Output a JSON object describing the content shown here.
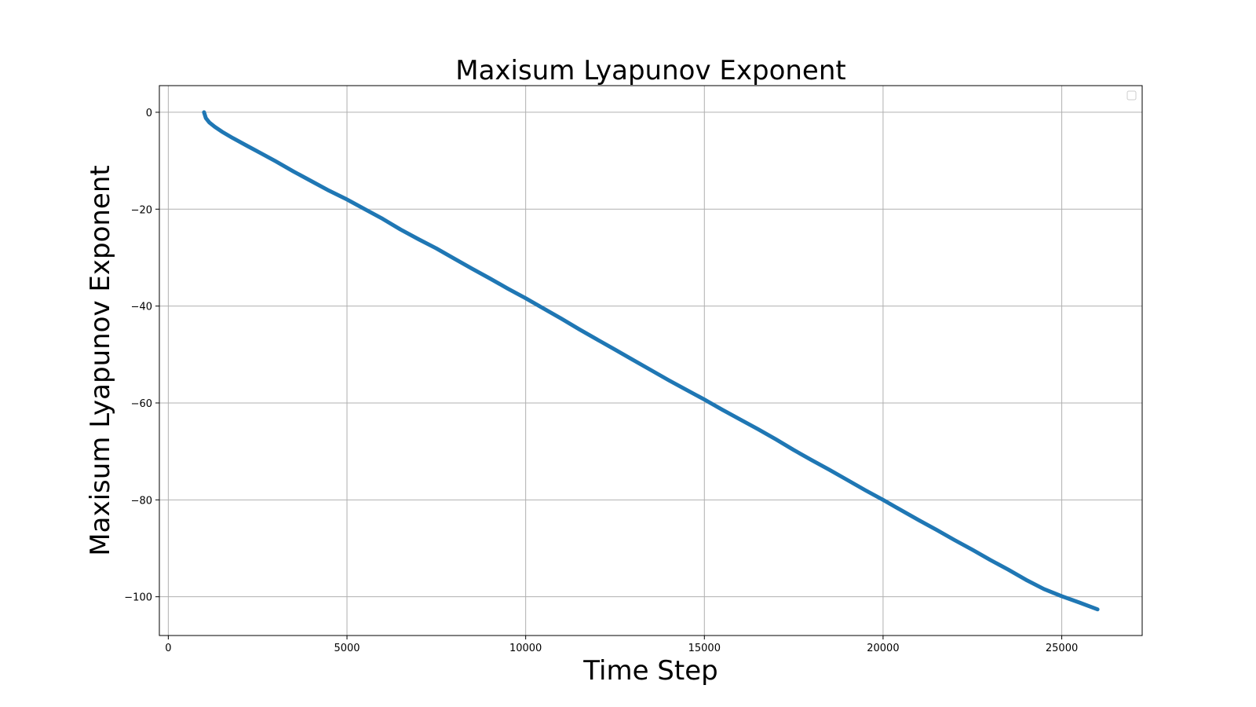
{
  "chart_data": {
    "type": "line",
    "title": "Maxisum Lyapunov Exponent",
    "xlabel": "Time Step",
    "ylabel": "Maxisum Lyapunov Exponent",
    "xlim": [
      -250,
      27250
    ],
    "ylim": [
      -108,
      5.5
    ],
    "x_ticks": [
      0,
      5000,
      10000,
      15000,
      20000,
      25000
    ],
    "y_ticks": [
      0,
      -20,
      -40,
      -60,
      -80,
      -100
    ],
    "x_tick_labels": [
      "0",
      "5000",
      "10000",
      "15000",
      "20000",
      "25000"
    ],
    "y_tick_labels": [
      "0",
      "−20",
      "−40",
      "−60",
      "−80",
      "−100"
    ],
    "grid": true,
    "legend": "top-right",
    "series": [
      {
        "color": "#1f77b4",
        "x": [
          1000,
          1050,
          1150,
          1300,
          1500,
          1800,
          2200,
          2600,
          3000,
          3500,
          4000,
          4500,
          5000,
          5500,
          6000,
          6500,
          7000,
          7500,
          8000,
          8500,
          9000,
          9500,
          10000,
          10500,
          11000,
          11500,
          12000,
          12500,
          13000,
          13500,
          14000,
          14500,
          15000,
          15500,
          16000,
          16500,
          17000,
          17500,
          18000,
          18500,
          19000,
          19500,
          20000,
          20500,
          21000,
          21500,
          22000,
          22500,
          23000,
          23500,
          24000,
          24500,
          25000,
          25500,
          26000
        ],
        "y": [
          0,
          -1.2,
          -2.1,
          -3.0,
          -4.0,
          -5.3,
          -6.9,
          -8.5,
          -10.1,
          -12.2,
          -14.2,
          -16.2,
          -18.0,
          -20.0,
          -22.0,
          -24.2,
          -26.2,
          -28.1,
          -30.2,
          -32.3,
          -34.3,
          -36.4,
          -38.4,
          -40.5,
          -42.6,
          -44.8,
          -46.9,
          -49.0,
          -51.1,
          -53.2,
          -55.3,
          -57.3,
          -59.3,
          -61.4,
          -63.4,
          -65.4,
          -67.5,
          -69.7,
          -71.8,
          -73.8,
          -75.9,
          -78.0,
          -80.0,
          -82.1,
          -84.2,
          -86.2,
          -88.3,
          -90.3,
          -92.4,
          -94.4,
          -96.5,
          -98.4,
          -99.9,
          -101.2,
          -102.6
        ]
      }
    ]
  }
}
